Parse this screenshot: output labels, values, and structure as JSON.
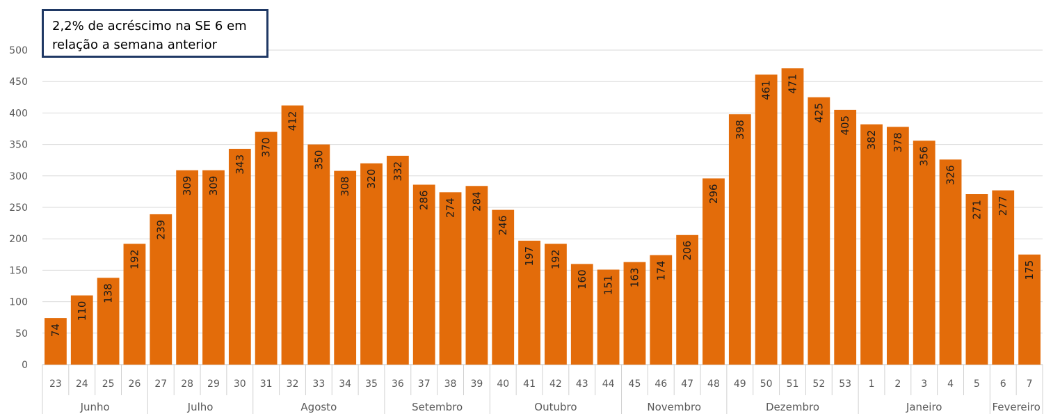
{
  "annotation": "2,2% de acréscimo na SE 6 em relação a semana anterior",
  "chart_data": {
    "type": "bar",
    "title": "",
    "xlabel": "",
    "ylabel": "",
    "ylim": [
      0,
      500
    ],
    "yticks": [
      0,
      50,
      100,
      150,
      200,
      250,
      300,
      350,
      400,
      450,
      500
    ],
    "grid": true,
    "bar_color": "#e36c0a",
    "categories": [
      "23",
      "24",
      "25",
      "26",
      "27",
      "28",
      "29",
      "30",
      "31",
      "32",
      "33",
      "34",
      "35",
      "36",
      "37",
      "38",
      "39",
      "40",
      "41",
      "42",
      "43",
      "44",
      "45",
      "46",
      "47",
      "48",
      "49",
      "50",
      "51",
      "52",
      "53",
      "1",
      "2",
      "3",
      "4",
      "5",
      "6",
      "7"
    ],
    "values": [
      74,
      110,
      138,
      192,
      239,
      309,
      309,
      343,
      370,
      412,
      350,
      308,
      320,
      332,
      286,
      274,
      284,
      246,
      197,
      192,
      160,
      151,
      163,
      174,
      206,
      296,
      398,
      461,
      471,
      425,
      405,
      382,
      378,
      356,
      326,
      271,
      277,
      175
    ],
    "months": [
      {
        "label": "Junho",
        "count": 4
      },
      {
        "label": "Julho",
        "count": 4
      },
      {
        "label": "Agosto",
        "count": 5
      },
      {
        "label": "Setembro",
        "count": 4
      },
      {
        "label": "Outubro",
        "count": 5
      },
      {
        "label": "Novembro",
        "count": 4
      },
      {
        "label": "Dezembro",
        "count": 5
      },
      {
        "label": "Janeiro",
        "count": 5
      },
      {
        "label": "Fevereiro",
        "count": 2
      }
    ]
  }
}
